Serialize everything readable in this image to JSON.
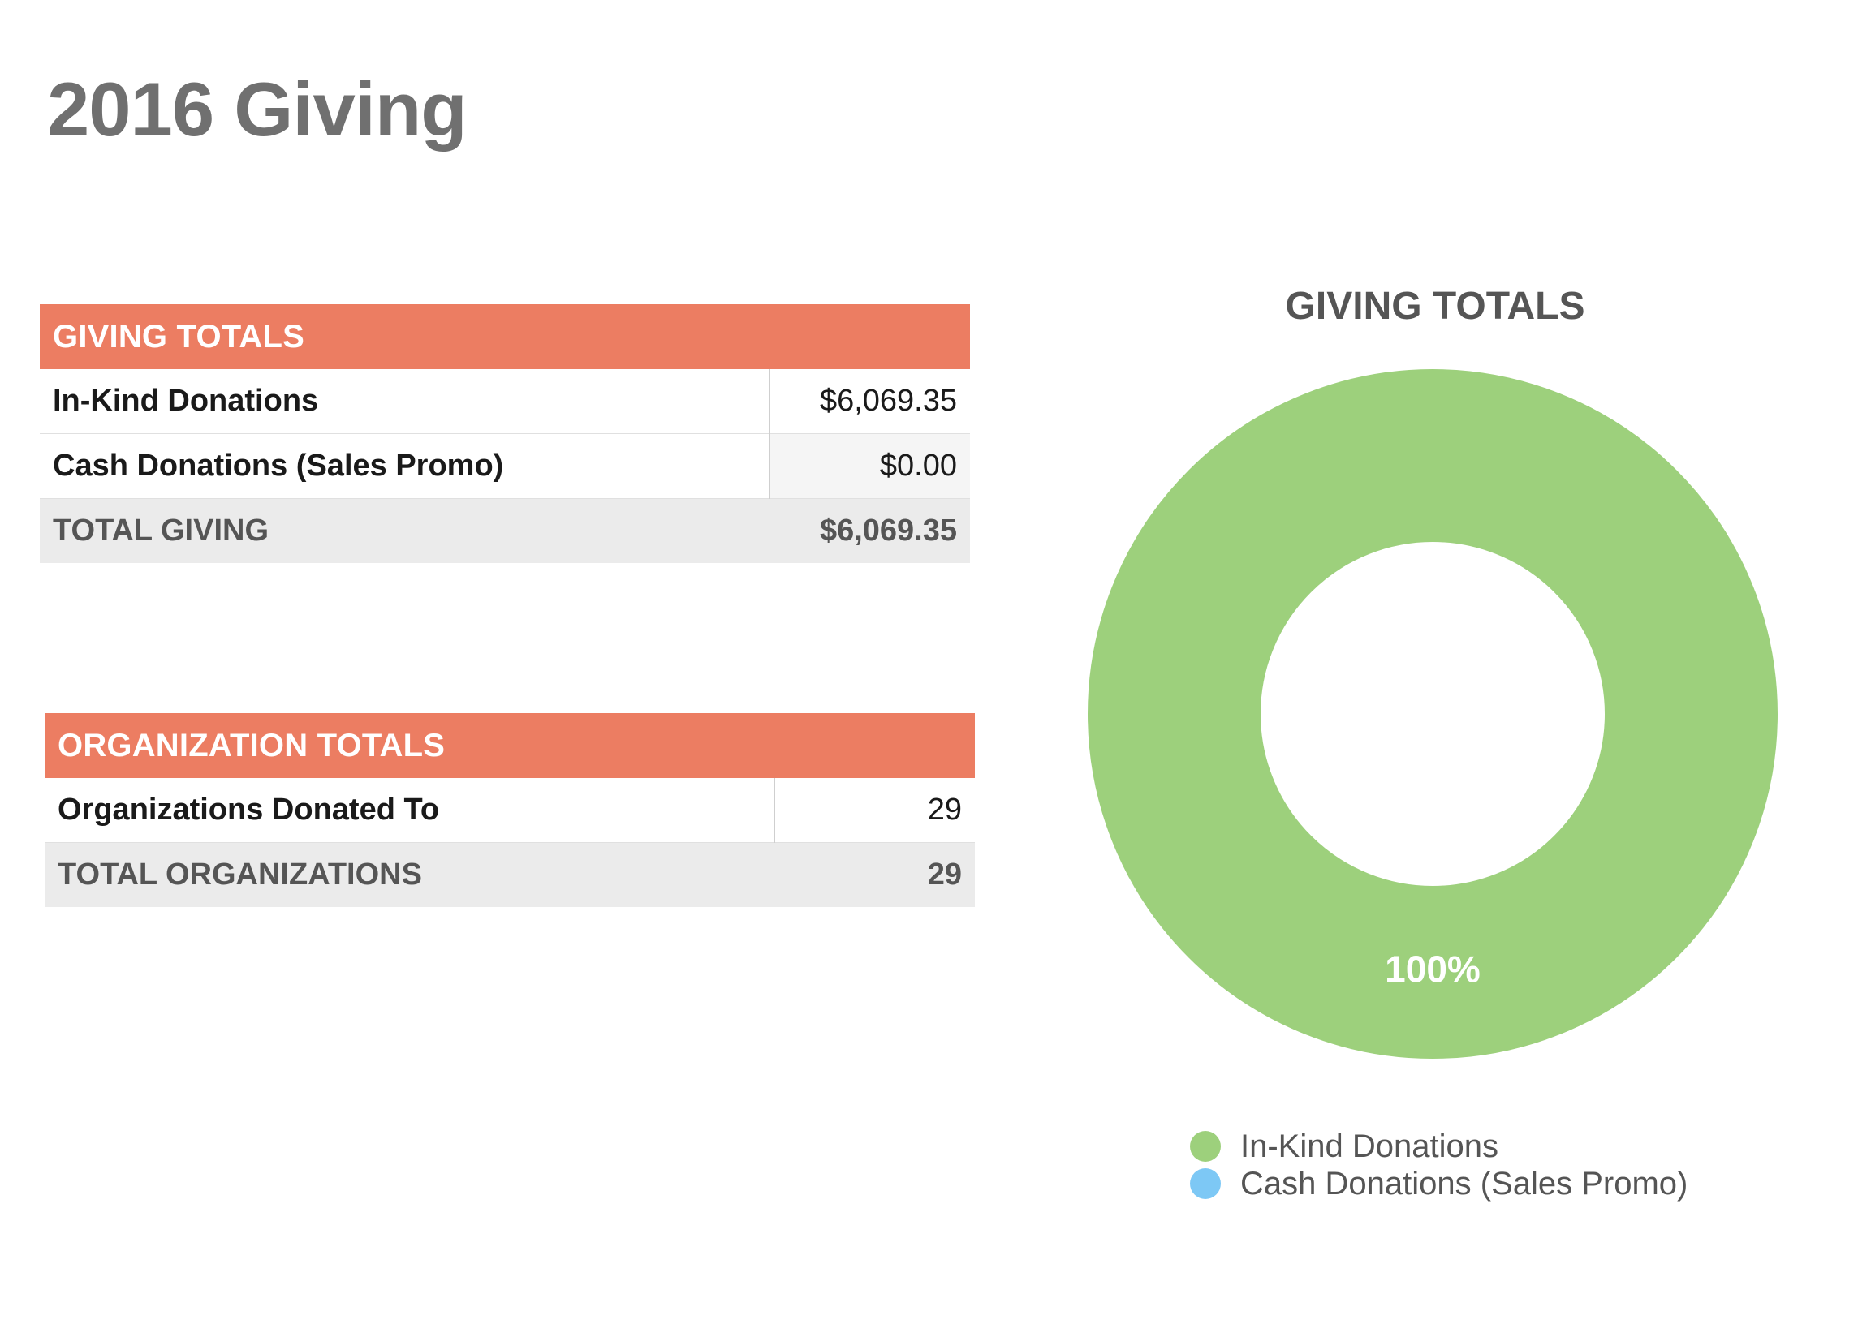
{
  "page": {
    "title": "2016 Giving"
  },
  "giving_table": {
    "header": "GIVING TOTALS",
    "rows": [
      {
        "label": "In-Kind Donations",
        "value": "$6,069.35"
      },
      {
        "label": "Cash Donations (Sales Promo)",
        "value": "$0.00"
      }
    ],
    "total": {
      "label": "TOTAL GIVING",
      "value": "$6,069.35"
    }
  },
  "org_table": {
    "header": "ORGANIZATION TOTALS",
    "rows": [
      {
        "label": "Organizations Donated To",
        "value": "29"
      }
    ],
    "total": {
      "label": "TOTAL ORGANIZATIONS",
      "value": "29"
    }
  },
  "chart_data": {
    "type": "pie",
    "title": "GIVING TOTALS",
    "categories": [
      "In-Kind Donations",
      "Cash Donations (Sales Promo)"
    ],
    "values": [
      6069.35,
      0.0
    ],
    "colors": [
      "#9dd07c",
      "#7dc8f5"
    ],
    "data_labels": [
      "100%",
      ""
    ],
    "donut": true,
    "legend": "bottom"
  }
}
